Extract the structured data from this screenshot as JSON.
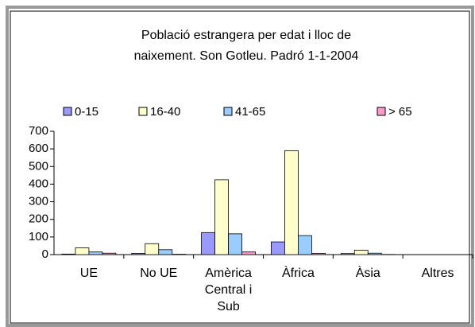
{
  "chart_data": {
    "type": "bar",
    "title": [
      "Població estrangera per edat i lloc de",
      "naixement. Son Gotleu. Padró 1-1-2004"
    ],
    "categories": [
      "UE",
      "No UE",
      "Amèrica Central i Sub",
      "Àfrica",
      "Àsia",
      "Altres"
    ],
    "series": [
      {
        "name": "0-15",
        "color": "#9999ff",
        "values": [
          3,
          7,
          125,
          72,
          6,
          0
        ]
      },
      {
        "name": "16-40",
        "color": "#ffffcc",
        "values": [
          38,
          62,
          425,
          590,
          25,
          0
        ]
      },
      {
        "name": "41-65",
        "color": "#99ccff",
        "values": [
          15,
          28,
          118,
          108,
          8,
          0
        ]
      },
      {
        "name": "> 65",
        "color": "#ff99cc",
        "values": [
          8,
          2,
          15,
          7,
          1,
          0
        ]
      }
    ],
    "ylim": [
      0,
      700
    ],
    "yticks": [
      0,
      100,
      200,
      300,
      400,
      500,
      600,
      700
    ]
  }
}
